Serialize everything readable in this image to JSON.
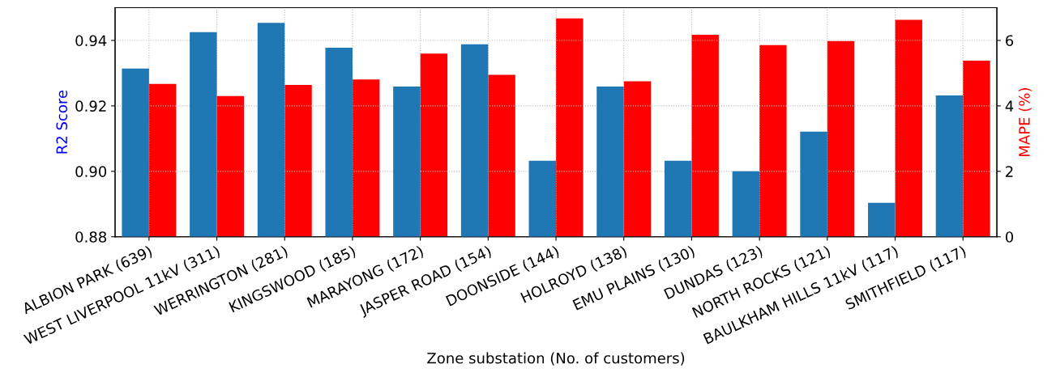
{
  "chart_data": {
    "type": "bar",
    "xlabel": "Zone substation (No. of customers)",
    "ylabel": "R2 Score",
    "y2label": "MAPE (%)",
    "categories": [
      "ALBION PARK (639)",
      "WEST LIVERPOOL 11kV (311)",
      "WERRINGTON (281)",
      "KINGSWOOD (185)",
      "MARAYONG (172)",
      "JASPER ROAD (154)",
      "DOONSIDE (144)",
      "HOLROYD (138)",
      "EMU PLAINS (130)",
      "DUNDAS (123)",
      "NORTH ROCKS (121)",
      "BAULKHAM HILLS 11kV (117)",
      "SMITHFIELD (117)"
    ],
    "series": [
      {
        "color": "#1f77b4",
        "values": [
          0.9314,
          0.9425,
          0.9454,
          0.9378,
          0.9259,
          0.9388,
          0.9032,
          0.9259,
          0.9032,
          0.9,
          0.9121,
          0.8904,
          0.9232
        ]
      },
      {
        "color": "#ff0000",
        "axis": "y2",
        "values": [
          4.67,
          4.3,
          4.64,
          4.81,
          5.6,
          4.95,
          6.67,
          4.75,
          6.17,
          5.86,
          5.98,
          6.63,
          5.38
        ]
      }
    ],
    "ylim": [
      0.88,
      0.95
    ],
    "yticks": [
      {
        "value": 0.88,
        "label": "0.88"
      },
      {
        "value": 0.9,
        "label": "0.90"
      },
      {
        "value": 0.92,
        "label": "0.92"
      },
      {
        "value": 0.94,
        "label": "0.94"
      }
    ],
    "y2lim": [
      0,
      7
    ],
    "y2ticks": [
      0,
      2,
      4,
      6
    ],
    "grid": true
  }
}
